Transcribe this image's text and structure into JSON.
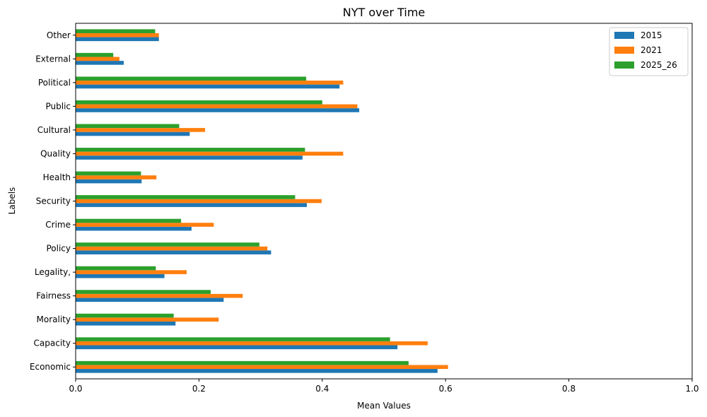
{
  "chart_data": {
    "type": "bar",
    "orientation": "horizontal",
    "title": "NYT over Time",
    "xlabel": "Mean Values",
    "ylabel": "Labels",
    "xlim": [
      0,
      1.0
    ],
    "x_ticks": [
      "0.0",
      "0.2",
      "0.4",
      "0.6",
      "0.8",
      "1.0"
    ],
    "legend_position": "top-right",
    "grid": false,
    "categories": [
      "Economic",
      "Capacity",
      "Morality",
      "Fairness",
      "Legality,",
      "Policy",
      "Crime",
      "Security",
      "Health",
      "Quality",
      "Cultural",
      "Public",
      "Political",
      "External",
      "Other"
    ],
    "series": [
      {
        "name": "2015",
        "color": "#1f77b4",
        "values": [
          0.587,
          0.522,
          0.162,
          0.24,
          0.144,
          0.317,
          0.188,
          0.375,
          0.107,
          0.368,
          0.185,
          0.46,
          0.428,
          0.078,
          0.135
        ]
      },
      {
        "name": "2021",
        "color": "#ff7f0e",
        "values": [
          0.604,
          0.571,
          0.232,
          0.271,
          0.18,
          0.311,
          0.224,
          0.399,
          0.131,
          0.434,
          0.21,
          0.457,
          0.434,
          0.071,
          0.135
        ]
      },
      {
        "name": "2025_26",
        "color": "#2ca02c",
        "values": [
          0.54,
          0.51,
          0.159,
          0.219,
          0.13,
          0.298,
          0.171,
          0.356,
          0.106,
          0.372,
          0.168,
          0.4,
          0.374,
          0.061,
          0.129
        ]
      }
    ]
  }
}
